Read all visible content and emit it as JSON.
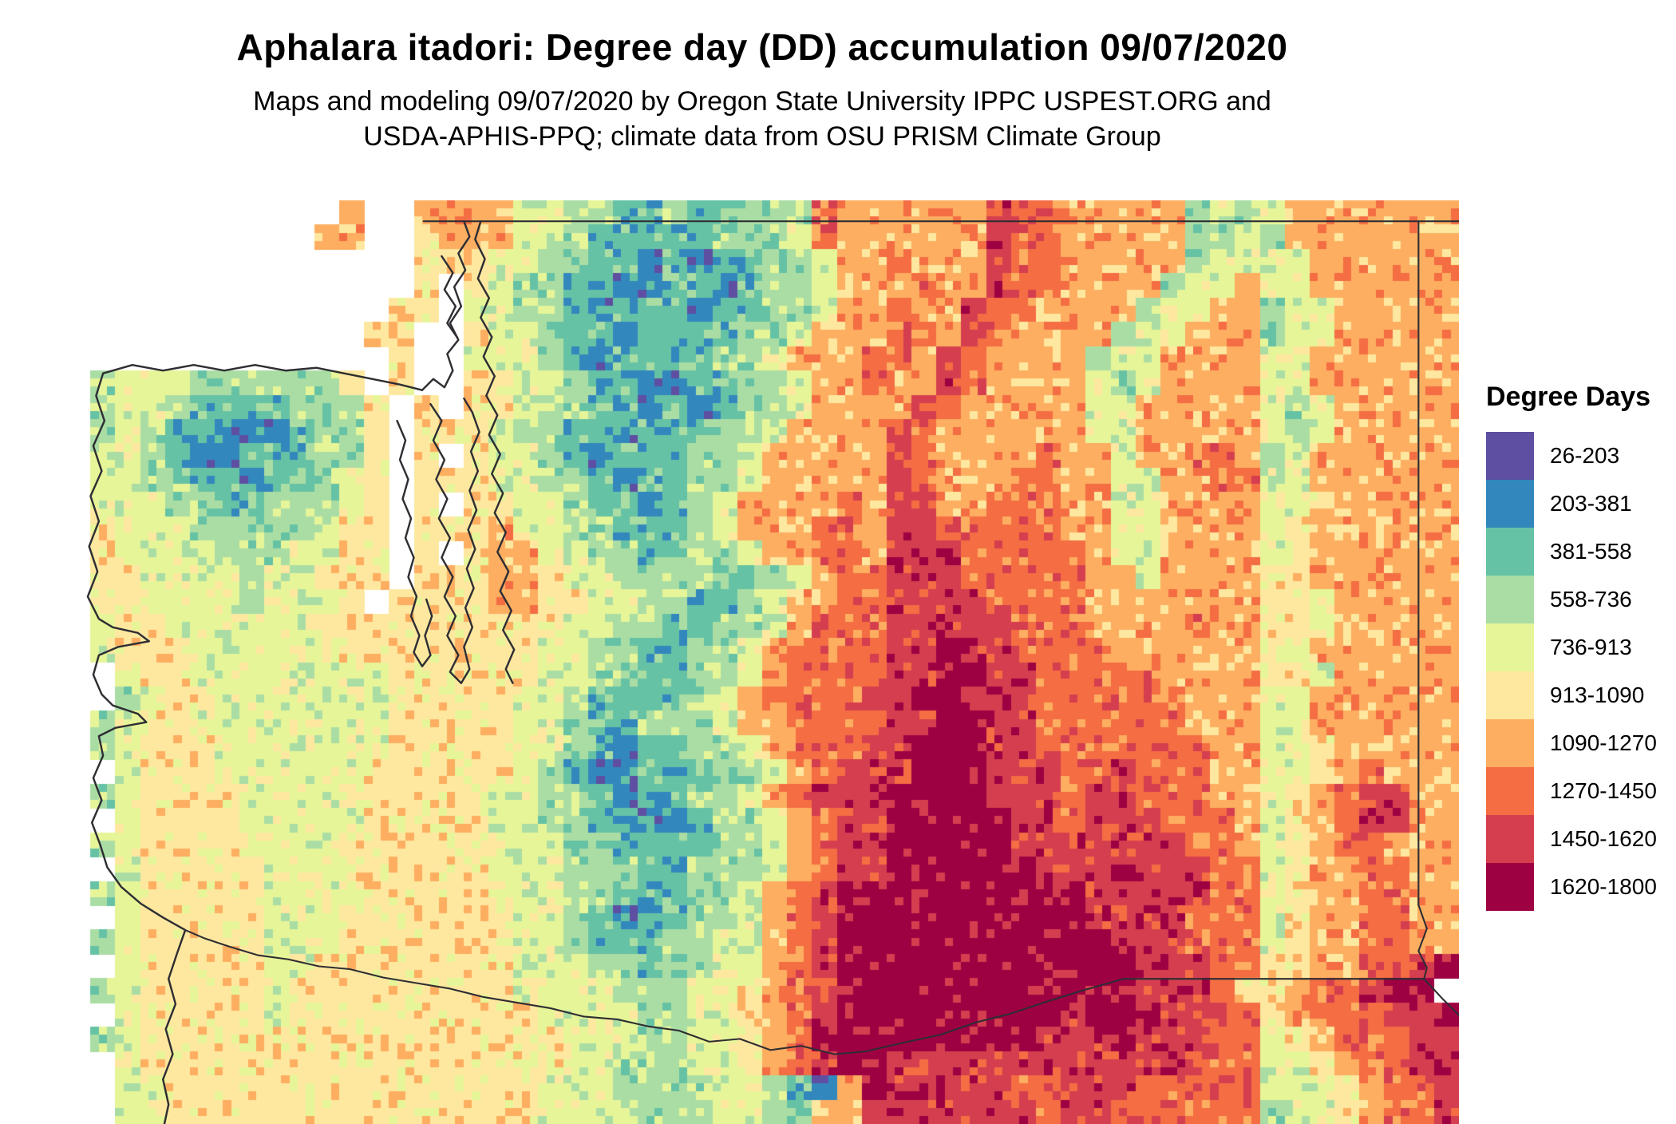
{
  "header": {
    "title": "Aphalara itadori: Degree day (DD) accumulation 09/07/2020",
    "subtitle_line1": "Maps and modeling 09/07/2020 by Oregon State University IPPC USPEST.ORG and",
    "subtitle_line2": "USDA-APHIS-PPQ; climate data from OSU PRISM Climate Group"
  },
  "legend": {
    "title": "Degree Days"
  },
  "chart_data": {
    "type": "heatmap",
    "title": "Aphalara itadori: Degree day (DD) accumulation 09/07/2020",
    "value_label": "Degree Days",
    "legend_position": "right",
    "classes": [
      {
        "label": "26-203",
        "color": "#5e4fa2"
      },
      {
        "label": "203-381",
        "color": "#3288bd"
      },
      {
        "label": "381-558",
        "color": "#66c2a5"
      },
      {
        "label": "558-736",
        "color": "#aadda4"
      },
      {
        "label": "736-913",
        "color": "#e6f598"
      },
      {
        "label": "913-1090",
        "color": "#fee8a0"
      },
      {
        "label": "1090-1270",
        "color": "#fdae61"
      },
      {
        "label": "1270-1450",
        "color": "#f46d43"
      },
      {
        "label": "1450-1620",
        "color": "#d53e4f"
      },
      {
        "label": "1620-1800",
        "color": "#9e0142"
      }
    ],
    "no_data_char": ".",
    "grid_cols": 56,
    "grid_rows": [
      "...........6..6666443322322333766666687766666343 46666666",
      "..........66..5666443222223334766666687766666334 36666666",
      "..............555443322121223346676668776666634444666666",
      "..............5.54332211221233466676687766663446 44666666",
      ".............55.44332122212233466766877666634466 34466666",
      "............55..54432212222334666776876666344666 34466666",
      ".............5..44432122223346667768766663446666 44666666",
      ".34443333335.5..554432211223346676687666643466664 4666666",
      ".344322223335.5.55433221212334666687666664466666 43466666",
      ".343221112335.5554332212223346666876666664466666 43466666",
      ".443211222335.5.54432122233466666876666766466776 34666666",
      ".443322122345.5554433212233466666876667766446677 44666666",
      ".444332233345.5.55443221234666676886677766446666 44566666",
      ".544433333455.5556443322234666776887777766446666 45666666",
      ".544443334455.5.56644332233466776888777776446666 45666666",
      ".554444344555.5556654433332234677888777776646666 55666666",
      ".55444434445.55556655443322346677888877776666666 55466666",
      ".455444444555555555544332233467778888877766667665 5466666",
      ".455544444455555555443322334677778898877776666665 4666666",
      "..455444444445555554433223346777788998877777666655 466666",
      "..345544444445555544322223467777889988877777666644 666666",
      ".345544444444555554432233346677778899887777776664 4666666",
      ".345554444444555554432122334677788999887777777664 4566666",
      "..455544444455555543211222334678889998887787776644 567666",
      ".345555444455555544332122334678889999888788777664 5678866",
      "..455554444455555443322112334678899999887888777645 678866",
      ".345555444455555544433222233467889999988888887764 5677666",
      "..455555444555555444333223334678899999988898887745 667766",
      ".345555544445555544433222334678999999999988888774 5667766",
      "..455555444555555544321223346789999999999888877745 667766",
      ".345555544455555554432223344678999999999998887774 5667766",
      "..455555445555555544433233446789999999999998887755 667789",
      ".345555545555555554444333445678999999999999888755 677899",
      "..455555455555555554444334456789999999998999888756 777889",
      ".345555555555555555544433445679999999998889888774 5677788",
      "..455555555555555555443334456789988888888888877744 567788",
      "..445555555555555554443333443216988888778887777744 456778",
      "..445555555555555554444333443266888888878877777734 456778"
    ]
  }
}
